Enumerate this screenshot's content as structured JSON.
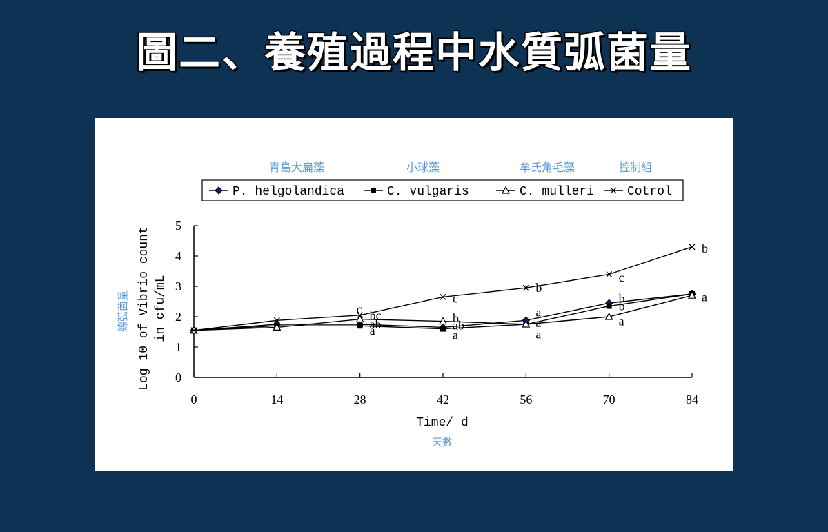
{
  "page": {
    "title": "圖二、養殖過程中水質弧菌量"
  },
  "annotations": {
    "chinese_series_labels": [
      "青島大扁藻",
      "小球藻",
      "牟氏角毛藻",
      "控制組"
    ],
    "chinese_ylabel": "總弧菌量",
    "chinese_xlabel": "天數"
  },
  "colors": {
    "background": "#0e3253",
    "annotation_blue": "#5b9bd5",
    "series_diamond": "#1a1a6e",
    "axis": "#000000"
  },
  "chart_data": {
    "type": "line",
    "x": [
      0,
      14,
      28,
      42,
      56,
      70,
      84
    ],
    "xlabel": "Time/ d",
    "ylabel_line1": "Log 10 of Vibrio count",
    "ylabel_line2": "in cfu/mL",
    "ylim": [
      0,
      5
    ],
    "yticks": [
      0,
      1,
      2,
      3,
      4,
      5
    ],
    "xticks": [
      0,
      14,
      28,
      42,
      56,
      70,
      84
    ],
    "legend_position": "top",
    "series": [
      {
        "name": "P. helgolandica",
        "marker": "diamond",
        "values": [
          1.55,
          1.75,
          1.75,
          1.65,
          1.88,
          2.45,
          2.75
        ]
      },
      {
        "name": "C. vulgaris",
        "marker": "square",
        "values": [
          1.55,
          1.7,
          1.7,
          1.6,
          1.75,
          2.35,
          2.75
        ]
      },
      {
        "name": "C. mulleri",
        "marker": "triangle",
        "values": [
          1.55,
          1.65,
          1.92,
          1.85,
          1.75,
          2.0,
          2.7
        ]
      },
      {
        "name": "Cotrol",
        "marker": "x",
        "values": [
          1.55,
          1.88,
          2.05,
          2.65,
          2.95,
          3.4,
          4.3
        ]
      }
    ],
    "letter_labels": [
      {
        "x": 28,
        "y": 2.25,
        "text": "c"
      },
      {
        "x": 28,
        "y": 2.05,
        "text": "bc"
      },
      {
        "x": 28,
        "y": 1.75,
        "text": "ab"
      },
      {
        "x": 28,
        "y": 1.55,
        "text": "a"
      },
      {
        "x": 42,
        "y": 2.6,
        "text": "c"
      },
      {
        "x": 42,
        "y": 1.95,
        "text": "b"
      },
      {
        "x": 42,
        "y": 1.72,
        "text": "ab"
      },
      {
        "x": 42,
        "y": 1.4,
        "text": "a"
      },
      {
        "x": 56,
        "y": 2.95,
        "text": "b"
      },
      {
        "x": 56,
        "y": 2.15,
        "text": "a"
      },
      {
        "x": 56,
        "y": 1.8,
        "text": "a"
      },
      {
        "x": 56,
        "y": 1.42,
        "text": "a"
      },
      {
        "x": 70,
        "y": 3.3,
        "text": "c"
      },
      {
        "x": 70,
        "y": 2.6,
        "text": "b"
      },
      {
        "x": 70,
        "y": 2.35,
        "text": "b"
      },
      {
        "x": 70,
        "y": 1.85,
        "text": "a"
      },
      {
        "x": 84,
        "y": 4.25,
        "text": "b"
      },
      {
        "x": 84,
        "y": 2.65,
        "text": "a"
      }
    ]
  }
}
